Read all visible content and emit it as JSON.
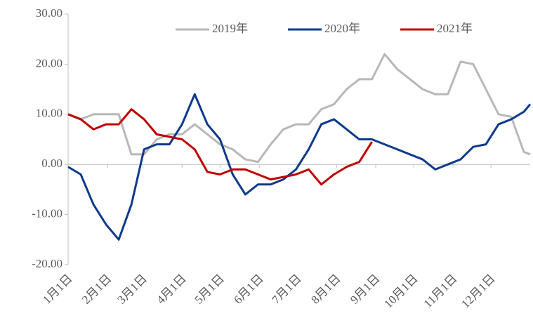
{
  "chart_data": {
    "type": "line",
    "x": [
      0,
      10,
      20,
      30,
      40,
      50,
      60,
      70,
      80,
      90,
      100,
      110,
      120,
      130,
      140,
      150,
      160,
      170,
      180,
      190,
      200,
      210,
      220,
      230,
      240,
      250,
      260,
      270,
      280,
      290,
      300,
      310,
      320,
      330,
      340,
      350,
      360,
      365
    ],
    "series": [
      {
        "name": "2019年",
        "color": "#b8b8b8",
        "values": [
          10,
          9,
          10,
          10,
          10,
          2,
          2,
          5,
          6,
          6,
          8,
          6,
          4,
          3,
          1,
          0.5,
          4,
          7,
          8,
          8,
          11,
          12,
          15,
          17,
          17,
          22,
          19,
          17,
          15,
          14,
          14,
          20.5,
          20,
          15,
          10,
          9.5,
          2.5,
          2
        ]
      },
      {
        "name": "2020年",
        "color": "#0e3a8a",
        "values": [
          -0.5,
          -2,
          -8,
          -12,
          -15,
          -8,
          3,
          4,
          4,
          8,
          14,
          8,
          5,
          -2,
          -6,
          -4,
          -4,
          -3,
          -1,
          3,
          8,
          9,
          7,
          5,
          5,
          4,
          3,
          2,
          1,
          -1,
          0,
          1,
          3.5,
          4,
          8,
          9,
          10.5,
          12
        ]
      },
      {
        "name": "2021年",
        "color": "#c00000",
        "values": [
          10,
          9,
          7,
          8,
          8,
          11,
          9,
          6,
          5.5,
          5,
          3,
          -1.5,
          -2,
          -1,
          -1,
          -2,
          -3,
          -2.5,
          -2,
          -1,
          -4,
          -2,
          -0.5,
          0.5,
          4.5,
          null,
          null,
          null,
          null,
          null,
          null,
          null,
          null,
          null,
          null,
          null,
          null,
          null
        ]
      }
    ],
    "xlim": [
      0,
      365
    ],
    "xticks": [
      {
        "value": 0,
        "label": "1月1日"
      },
      {
        "value": 31,
        "label": "2月1日"
      },
      {
        "value": 59,
        "label": "3月1日"
      },
      {
        "value": 90,
        "label": "4月1日"
      },
      {
        "value": 120,
        "label": "5月1日"
      },
      {
        "value": 151,
        "label": "6月1日"
      },
      {
        "value": 181,
        "label": "7月1日"
      },
      {
        "value": 212,
        "label": "8月1日"
      },
      {
        "value": 243,
        "label": "9月1日"
      },
      {
        "value": 273,
        "label": "10月1日"
      },
      {
        "value": 304,
        "label": "11月1日"
      },
      {
        "value": 334,
        "label": "12月1日"
      }
    ],
    "ylim": [
      -20,
      30
    ],
    "yticks": [
      {
        "value": -20,
        "label": "-20.00"
      },
      {
        "value": -10,
        "label": "-10.00"
      },
      {
        "value": 0,
        "label": "0.00"
      },
      {
        "value": 10,
        "label": "10.00"
      },
      {
        "value": 20,
        "label": "20.00"
      },
      {
        "value": 30,
        "label": "30.00"
      }
    ],
    "legend": "top"
  }
}
